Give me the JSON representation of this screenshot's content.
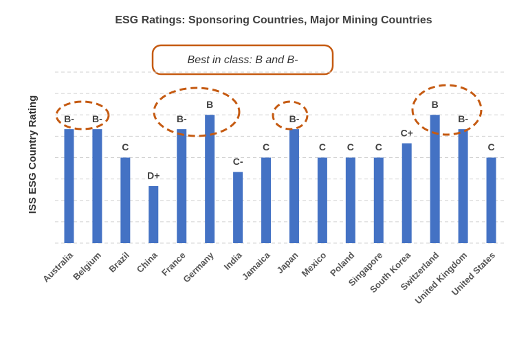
{
  "chart_data": {
    "type": "bar",
    "title": "ESG Ratings: Sponsoring Countries, Major Mining Countries",
    "y_label": "ISS ESG Country Rating",
    "annotation": "Best in class: B and B-",
    "categories": [
      "Australia",
      "Belgium",
      "Brazil",
      "China",
      "France",
      "Germany",
      "India",
      "Jamaica",
      "Japan",
      "Mexico",
      "Poland",
      "Singapore",
      "South Korea",
      "Switzerland",
      "United Kingdom",
      "United States"
    ],
    "values": [
      5.33,
      5.33,
      4,
      2.67,
      5.33,
      6,
      3.33,
      4,
      5.33,
      4,
      4,
      4,
      4.67,
      6,
      5.33,
      4
    ],
    "value_labels": [
      "B-",
      "B-",
      "C",
      "D+",
      "B-",
      "B",
      "C-",
      "C",
      "B-",
      "C",
      "C",
      "C",
      "C+",
      "B",
      "B-",
      "C"
    ],
    "color": "#4472c4",
    "ylim": [
      0,
      8
    ],
    "yticks": [
      0,
      1,
      2,
      3,
      4,
      5,
      6,
      7,
      8
    ],
    "grid": true
  }
}
